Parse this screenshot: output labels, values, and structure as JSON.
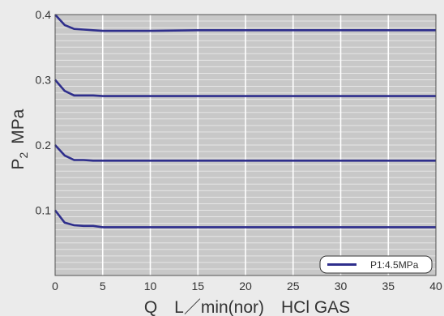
{
  "chart_data": {
    "type": "line",
    "xlabel": "Q　L／min(nor)　HCl GAS",
    "ylabel": "P2 MPa",
    "ylabel_main": "P",
    "ylabel_sub": "2",
    "ylabel_unit": "MPa",
    "xlim": [
      0,
      40
    ],
    "ylim": [
      0,
      0.4
    ],
    "x_ticks": [
      "0",
      "5",
      "10",
      "15",
      "20",
      "25",
      "30",
      "35",
      "40"
    ],
    "y_ticks": [
      "0.1",
      "0.2",
      "0.3",
      "0.4"
    ],
    "y_tick_values": [
      0.1,
      0.2,
      0.3,
      0.4
    ],
    "grid": true,
    "legend_position": "bottom-right",
    "legend_label": "P1:4.5MPa",
    "series_color": "#2e2e8c",
    "series": [
      {
        "x": [
          0,
          1,
          2,
          3,
          4,
          5,
          10,
          15,
          20,
          25,
          30,
          35,
          40
        ],
        "y": [
          0.4,
          0.384,
          0.378,
          0.377,
          0.376,
          0.375,
          0.375,
          0.376,
          0.376,
          0.376,
          0.376,
          0.376,
          0.376
        ]
      },
      {
        "x": [
          0,
          1,
          2,
          3,
          4,
          5,
          10,
          15,
          20,
          25,
          30,
          35,
          40
        ],
        "y": [
          0.3,
          0.283,
          0.276,
          0.276,
          0.276,
          0.275,
          0.275,
          0.275,
          0.275,
          0.275,
          0.275,
          0.275,
          0.275
        ]
      },
      {
        "x": [
          0,
          1,
          2,
          3,
          4,
          5,
          10,
          15,
          20,
          25,
          30,
          35,
          40
        ],
        "y": [
          0.2,
          0.184,
          0.177,
          0.177,
          0.176,
          0.176,
          0.176,
          0.176,
          0.176,
          0.176,
          0.176,
          0.176,
          0.176
        ]
      },
      {
        "x": [
          0,
          1,
          2,
          3,
          4,
          5,
          10,
          15,
          20,
          25,
          30,
          35,
          40
        ],
        "y": [
          0.1,
          0.081,
          0.077,
          0.076,
          0.076,
          0.074,
          0.074,
          0.074,
          0.074,
          0.074,
          0.074,
          0.074,
          0.074
        ]
      }
    ]
  }
}
